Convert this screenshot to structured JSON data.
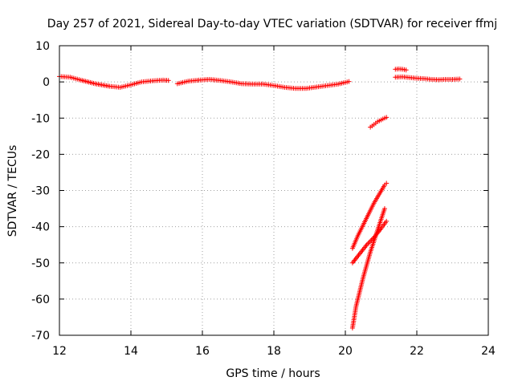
{
  "chart_data": {
    "type": "scatter",
    "title": "Day 257 of 2021, Sidereal Day-to-day VTEC variation (SDTVAR) for receiver ffmj",
    "xlabel": "GPS time / hours",
    "ylabel": "SDTVAR / TECUs",
    "xlim": [
      12,
      24
    ],
    "ylim": [
      -70,
      10
    ],
    "xticks": [
      12,
      14,
      16,
      18,
      20,
      22,
      24
    ],
    "yticks": [
      10,
      0,
      -10,
      -20,
      -30,
      -40,
      -50,
      -60,
      -70
    ],
    "grid": true,
    "marker": "+",
    "color": "#ff0000",
    "series": [
      {
        "segments": [
          {
            "x": [
              12.0,
              12.3,
              12.6,
              13.0,
              13.4,
              13.7,
              14.0,
              14.3,
              14.6,
              14.9,
              15.05
            ],
            "y": [
              1.5,
              1.3,
              0.5,
              -0.5,
              -1.2,
              -1.5,
              -0.8,
              0.0,
              0.3,
              0.5,
              0.4
            ]
          },
          {
            "x": [
              15.3,
              15.6,
              15.9,
              16.2,
              16.5,
              16.8,
              17.1,
              17.4,
              17.7,
              18.0,
              18.3,
              18.6,
              18.9,
              19.2,
              19.5,
              19.8,
              20.1
            ],
            "y": [
              -0.5,
              0.2,
              0.5,
              0.7,
              0.4,
              0.0,
              -0.5,
              -0.6,
              -0.6,
              -1.0,
              -1.5,
              -1.8,
              -1.8,
              -1.4,
              -1.0,
              -0.6,
              0.1
            ]
          },
          {
            "x": [
              20.7,
              20.8,
              20.9,
              21.0,
              21.1,
              21.15
            ],
            "y": [
              -12.5,
              -11.8,
              -11.0,
              -10.5,
              -10.0,
              -9.8
            ]
          },
          {
            "x": [
              20.2,
              20.35,
              20.5,
              20.65,
              20.8,
              20.95,
              21.1,
              21.15
            ],
            "y": [
              -46,
              -42.5,
              -39.5,
              -36.5,
              -33.5,
              -31,
              -28.5,
              -28
            ]
          },
          {
            "x": [
              20.2,
              20.4,
              20.6,
              20.8,
              21.0,
              21.15
            ],
            "y": [
              -50,
              -47.5,
              -45,
              -43,
              -40.5,
              -38.5
            ]
          },
          {
            "x": [
              20.2,
              20.3,
              20.4,
              20.5,
              20.6,
              20.7,
              20.8,
              20.9,
              21.0,
              21.1
            ],
            "y": [
              -68,
              -62,
              -58,
              -54,
              -50.5,
              -47,
              -44,
              -41,
              -38,
              -35
            ]
          },
          {
            "x": [
              21.4,
              21.5,
              21.6,
              21.7
            ],
            "y": [
              3.5,
              3.6,
              3.5,
              3.3
            ]
          },
          {
            "x": [
              21.4,
              21.6,
              21.8,
              22.0,
              22.2,
              22.4,
              22.6,
              22.8,
              23.0,
              23.2
            ],
            "y": [
              1.3,
              1.4,
              1.2,
              1.0,
              0.9,
              0.7,
              0.6,
              0.7,
              0.7,
              0.8
            ]
          }
        ]
      }
    ]
  }
}
